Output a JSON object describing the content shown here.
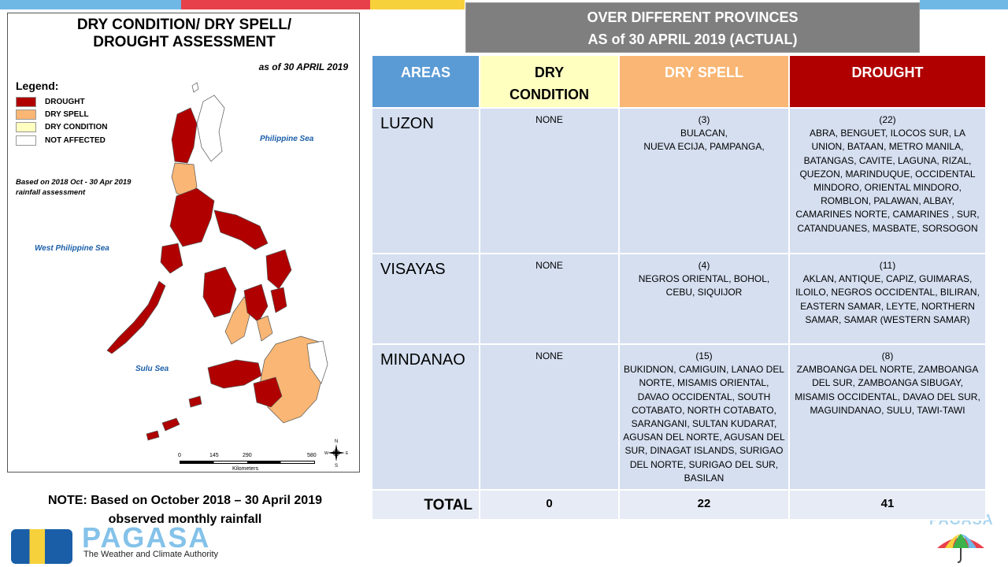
{
  "map": {
    "title": "DRY CONDITION/ DRY SPELL/\nDROUGHT ASSESSMENT",
    "date": "as of 30 APRIL 2019",
    "legend_title": "Legend:",
    "legend": [
      {
        "label": "DROUGHT",
        "color": "#b00000"
      },
      {
        "label": "DRY SPELL",
        "color": "#f9b674"
      },
      {
        "label": "DRY CONDITION",
        "color": "#ffffc0"
      },
      {
        "label": "NOT AFFECTED",
        "color": "#ffffff"
      }
    ],
    "basis_note": "Based on 2018 Oct - 30 Apr 2019\nrainfall assessment",
    "seas": {
      "philippine_sea": "Philippine Sea",
      "west_philippine_sea": "West Philippine Sea",
      "sulu_sea": "Sulu Sea"
    },
    "scale": {
      "ticks": [
        "0",
        "145",
        "290",
        "580"
      ],
      "unit": "Kilometers"
    },
    "compass": {
      "n": "N",
      "s": "S",
      "e": "E",
      "w": "W"
    }
  },
  "note": "NOTE: Based on October 2018 – 30 April 2019\nobserved monthly rainfall",
  "logo": {
    "name": "PAGASA",
    "tagline": "The Weather and Climate Authority"
  },
  "header": {
    "line1": "OVER DIFFERENT PROVINCES",
    "line2": "AS of 30 APRIL 2019 (ACTUAL)"
  },
  "table": {
    "headers": {
      "areas": "AREAS",
      "dry_condition": "DRY\nCONDITION",
      "dry_spell": "DRY SPELL",
      "drought": "DROUGHT"
    },
    "rows": [
      {
        "area": "LUZON",
        "dry_condition": "NONE",
        "dry_spell_count": "(3)",
        "dry_spell": "BULACAN,\nNUEVA ECIJA, PAMPANGA,",
        "drought_count": "(22)",
        "drought": "ABRA, BENGUET, ILOCOS SUR, LA UNION, BATAAN, METRO MANILA, BATANGAS, CAVITE, LAGUNA, RIZAL, QUEZON, MARINDUQUE, OCCIDENTAL MINDORO, ORIENTAL MINDORO, ROMBLON, PALAWAN, ALBAY, CAMARINES NORTE, CAMARINES , SUR, CATANDUANES, MASBATE, SORSOGON"
      },
      {
        "area": "VISAYAS",
        "dry_condition": "NONE",
        "dry_spell_count": "(4)",
        "dry_spell": "NEGROS ORIENTAL, BOHOL, CEBU, SIQUIJOR",
        "drought_count": "(11)",
        "drought": "AKLAN, ANTIQUE, CAPIZ, GUIMARAS, ILOILO, NEGROS OCCIDENTAL, BILIRAN, EASTERN SAMAR, LEYTE, NORTHERN SAMAR, SAMAR (WESTERN SAMAR)"
      },
      {
        "area": "MINDANAO",
        "dry_condition": "NONE",
        "dry_spell_count": "(15)",
        "dry_spell": "BUKIDNON, CAMIGUIN, LANAO DEL NORTE, MISAMIS ORIENTAL, DAVAO OCCIDENTAL, SOUTH COTABATO,  NORTH COTABATO, SARANGANI, SULTAN KUDARAT, AGUSAN DEL NORTE, AGUSAN DEL SUR, DINAGAT ISLANDS, SURIGAO DEL NORTE, SURIGAO DEL SUR, BASILAN",
        "drought_count": "(8)",
        "drought": "ZAMBOANGA DEL NORTE, ZAMBOANGA DEL SUR, ZAMBOANGA SIBUGAY, MISAMIS OCCIDENTAL, DAVAO DEL SUR, MAGUINDANAO, SULU, TAWI-TAWI"
      }
    ],
    "total": {
      "label": "TOTAL",
      "dry_condition": "0",
      "dry_spell": "22",
      "drought": "41"
    }
  }
}
